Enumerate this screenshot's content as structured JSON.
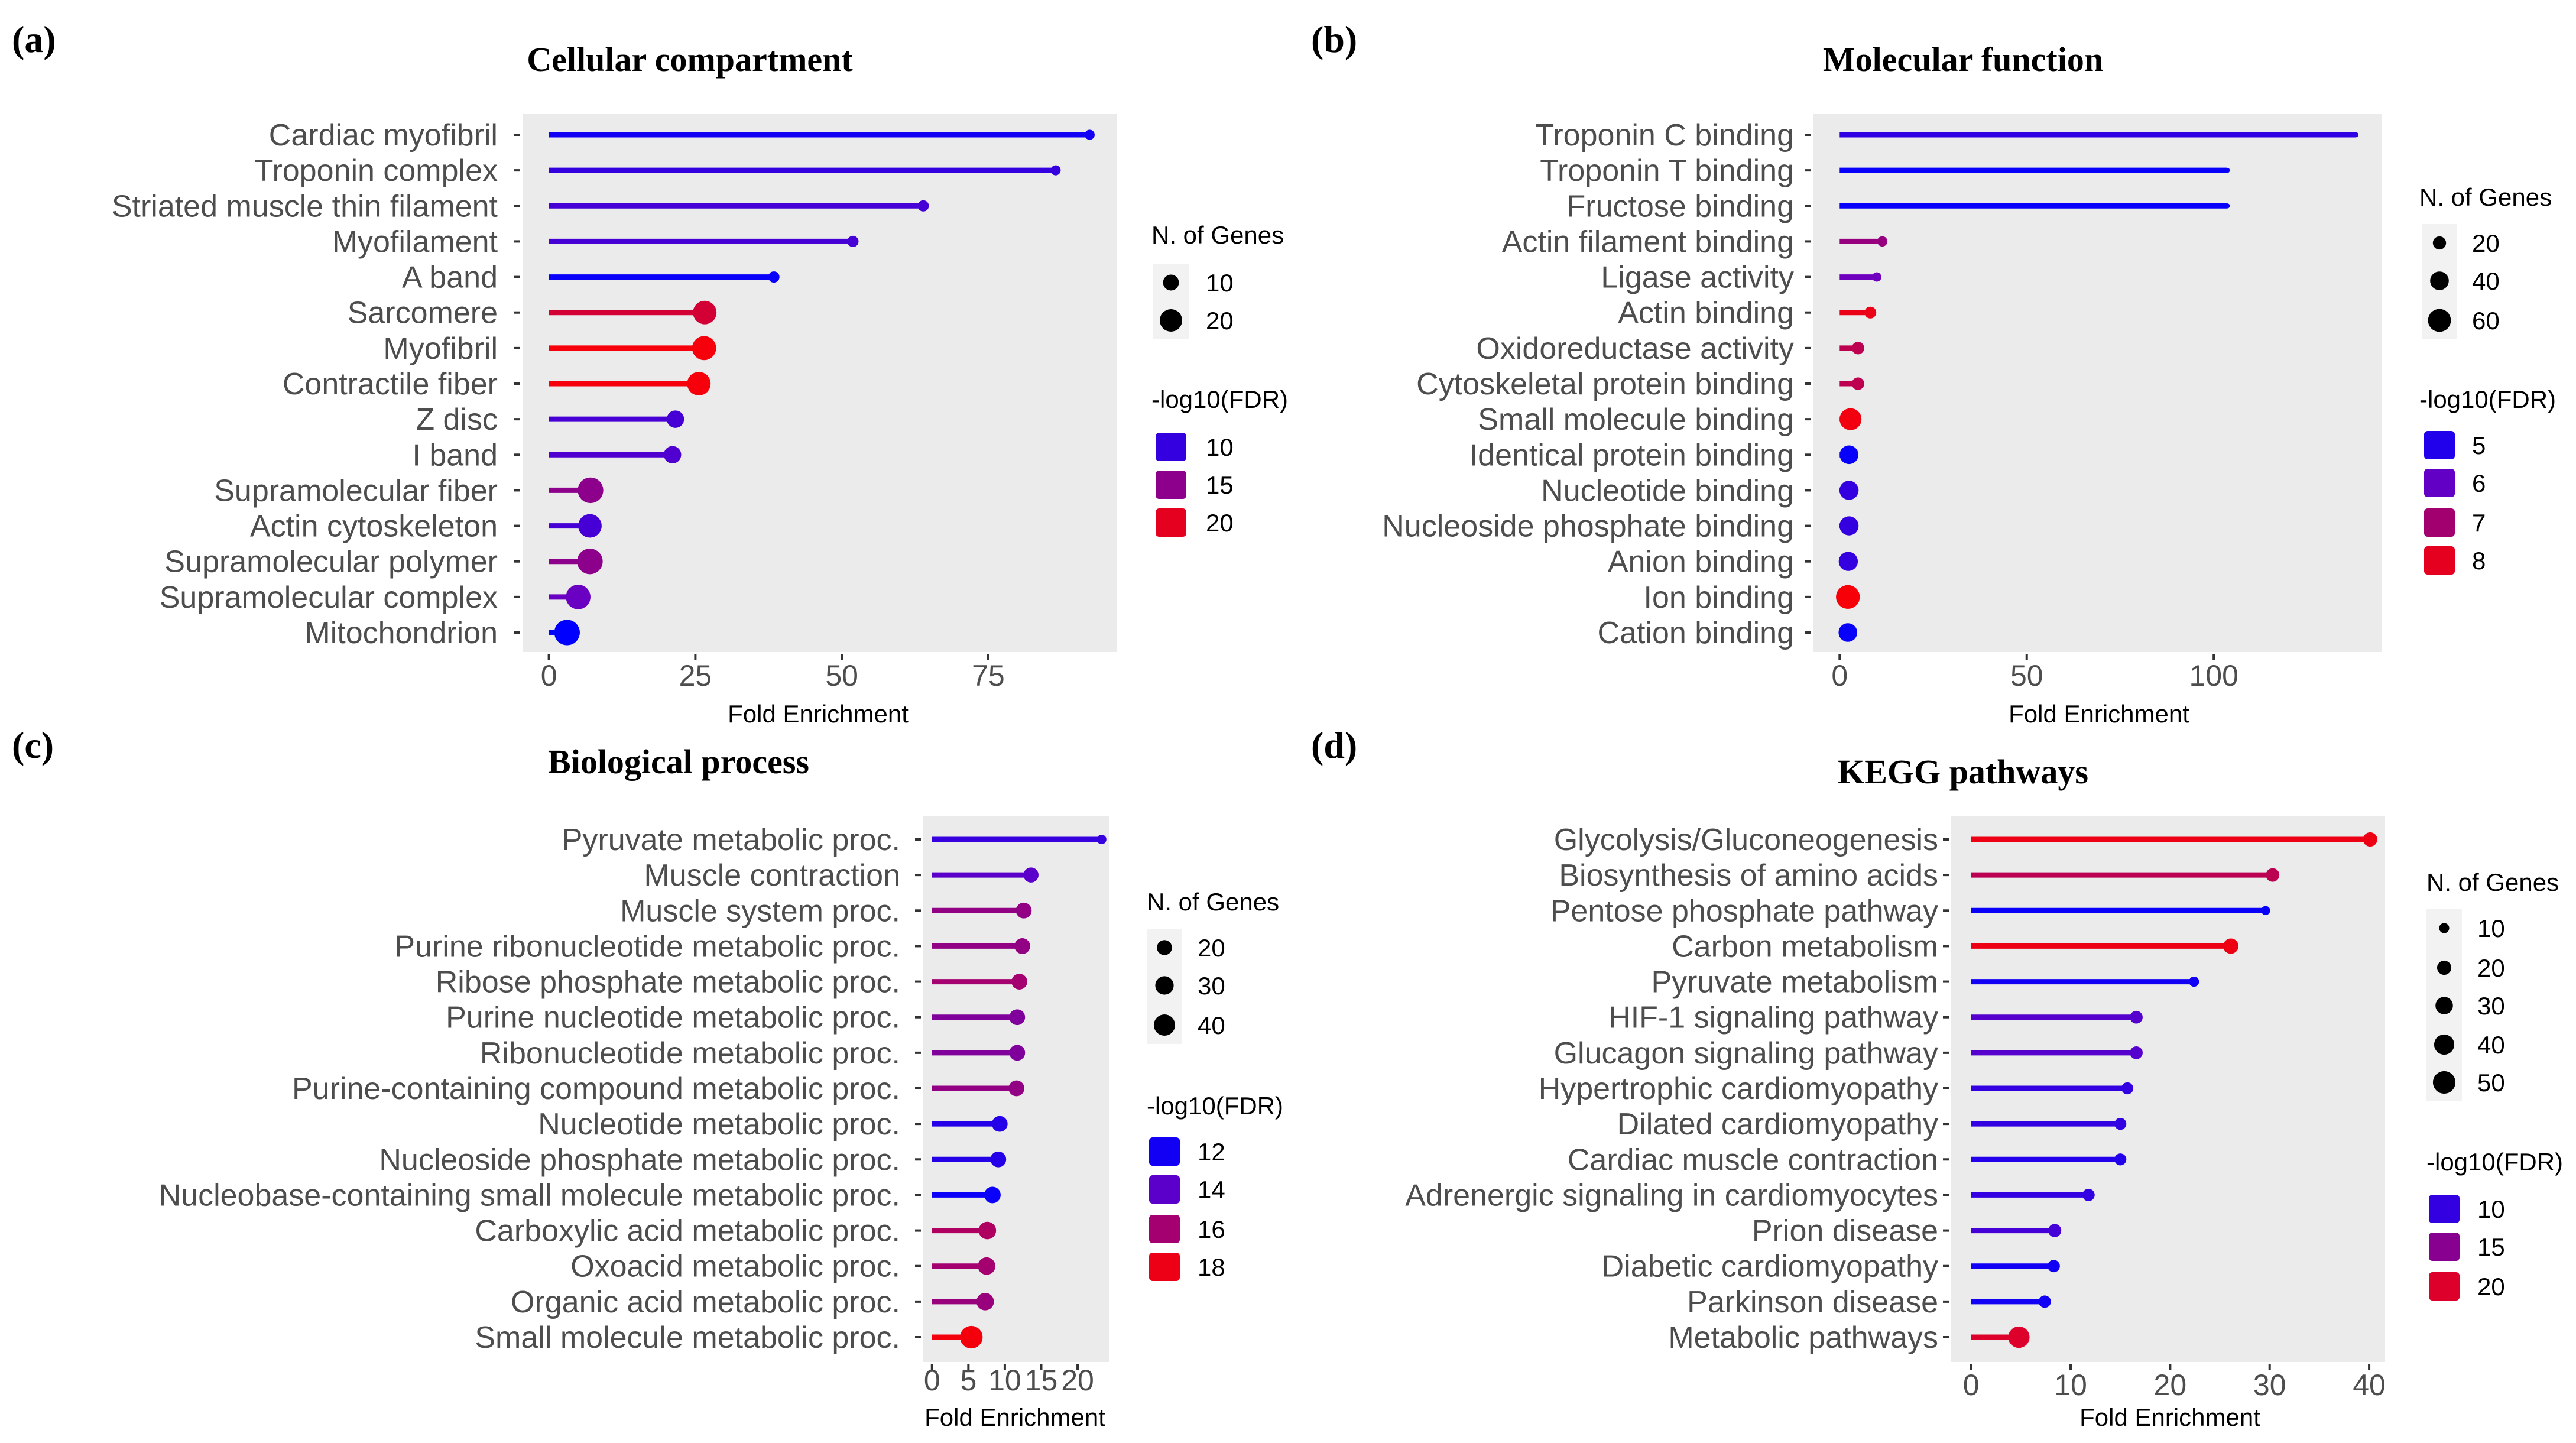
{
  "chart_data": [
    {
      "type": "lollipop",
      "panel_label": "(a)",
      "title": "Cellular compartment",
      "xlabel": "Fold Enrichment",
      "xticks": [
        0,
        25,
        50,
        75
      ],
      "xlim": [
        -4.5,
        97
      ],
      "categories": [
        "Cardiac myofibril",
        "Troponin complex",
        "Striated muscle thin filament",
        "Myofilament",
        "A band",
        "Sarcomere",
        "Myofibril",
        "Contractile fiber",
        "Z disc",
        "I band",
        "Supramolecular fiber",
        "Actin cytoskeleton",
        "Supramolecular polymer",
        "Supramolecular complex",
        "Mitochondrion"
      ],
      "fold_enrichment": [
        92.3,
        86.5,
        63.9,
        51.9,
        38.4,
        26.6,
        26.5,
        25.6,
        21.6,
        21.1,
        7.1,
        7.0,
        7.0,
        5.0,
        3.1
      ],
      "n_genes": [
        4,
        4,
        5,
        5,
        5,
        22,
        23,
        22,
        12,
        12,
        26,
        22,
        26,
        24,
        26
      ],
      "neg_log10_fdr": [
        8,
        10,
        11,
        11,
        7.5,
        19,
        21,
        21,
        11,
        11.5,
        15,
        11,
        15,
        13,
        7
      ],
      "color_range": [
        7,
        21.5
      ],
      "size_legend": {
        "title": "N. of Genes",
        "values": [
          10,
          20
        ]
      },
      "color_legend": {
        "title": "-log10(FDR)",
        "values": [
          10,
          15,
          20
        ]
      }
    },
    {
      "type": "lollipop",
      "panel_label": "(b)",
      "title": "Molecular function",
      "xlabel": "Fold Enrichment",
      "xticks": [
        0,
        50,
        100
      ],
      "xlim": [
        -7,
        145
      ],
      "categories": [
        "Troponin C binding",
        "Troponin T binding",
        "Fructose binding",
        "Actin filament binding",
        "Ligase activity",
        "Actin binding",
        "Oxidoreductase activity",
        "Cytoskeletal protein binding",
        "Small molecule binding",
        "Identical protein binding",
        "Nucleotide binding",
        "Nucleoside phosphate binding",
        "Anion binding",
        "Ion binding",
        "Cation binding"
      ],
      "fold_enrichment": [
        138,
        103.6,
        103.6,
        11.4,
        9.9,
        8.2,
        4.9,
        4.9,
        2.9,
        2.5,
        2.5,
        2.5,
        2.3,
        2.2,
        2.2
      ],
      "n_genes": [
        3,
        3,
        3,
        12,
        10,
        16,
        18,
        18,
        55,
        40,
        42,
        42,
        42,
        65,
        40
      ],
      "neg_log10_fdr": [
        5.2,
        4.6,
        4.6,
        6.8,
        6.2,
        8.1,
        7.4,
        7.4,
        8.2,
        4.6,
        5.3,
        5.3,
        5.3,
        8.3,
        4.6
      ],
      "color_range": [
        4.5,
        8.4
      ],
      "size_legend": {
        "title": "N. of Genes",
        "values": [
          20,
          40,
          60
        ]
      },
      "color_legend": {
        "title": "-log10(FDR)",
        "values": [
          5,
          6,
          7,
          8
        ]
      }
    },
    {
      "type": "lollipop",
      "panel_label": "(c)",
      "title": "Biological process",
      "xlabel": "Fold Enrichment",
      "xticks": [
        0,
        5,
        10,
        15,
        20
      ],
      "xlim": [
        -1.2,
        24.3
      ],
      "categories": [
        "Pyruvate metabolic proc.",
        "Muscle contraction",
        "Muscle system proc.",
        "Purine ribonucleotide metabolic proc.",
        "Ribose phosphate metabolic proc.",
        "Purine nucleotide metabolic proc.",
        "Ribonucleotide metabolic proc.",
        "Purine-containing compound metabolic proc.",
        "Nucleotide metabolic proc.",
        "Nucleoside phosphate metabolic proc.",
        "Nucleobase-containing small molecule metabolic proc.",
        "Carboxylic acid metabolic proc.",
        "Oxoacid metabolic proc.",
        "Organic acid metabolic proc.",
        "Small molecule metabolic proc."
      ],
      "fold_enrichment": [
        23.3,
        13.6,
        12.6,
        12.4,
        12.0,
        11.7,
        11.7,
        11.6,
        9.3,
        9.1,
        8.3,
        7.6,
        7.5,
        7.3,
        5.4
      ],
      "n_genes": [
        8,
        20,
        22,
        22,
        22,
        22,
        22,
        22,
        22,
        22,
        24,
        27,
        27,
        27,
        45
      ],
      "neg_log10_fdr": [
        13,
        14,
        15.5,
        15.5,
        16,
        15,
        15,
        15.5,
        12.5,
        12.5,
        11.8,
        16.3,
        16,
        15.7,
        18.2
      ],
      "color_range": [
        11.5,
        18.5
      ],
      "size_legend": {
        "title": "N. of Genes",
        "values": [
          20,
          30,
          40
        ]
      },
      "color_legend": {
        "title": "-log10(FDR)",
        "values": [
          12,
          14,
          16,
          18
        ]
      }
    },
    {
      "type": "lollipop",
      "panel_label": "(d)",
      "title": "KEGG pathways",
      "xlabel": "Fold Enrichment",
      "xticks": [
        0,
        10,
        20,
        30,
        40
      ],
      "xlim": [
        -2,
        41.6
      ],
      "categories": [
        "Glycolysis/Gluconeogenesis",
        "Biosynthesis of amino acids",
        "Pentose phosphate pathway",
        "Carbon metabolism",
        "Pyruvate metabolism",
        "HIF-1 signaling pathway",
        "Glucagon signaling pathway",
        "Hypertrophic cardiomyopathy",
        "Dilated cardiomyopathy",
        "Cardiac muscle contraction",
        "Adrenergic signaling in cardiomyocytes",
        "Prion disease",
        "Diabetic cardiomyopathy",
        "Parkinson disease",
        "Metabolic pathways"
      ],
      "fold_enrichment": [
        40.1,
        30.3,
        29.6,
        26.1,
        22.4,
        16.6,
        16.6,
        15.7,
        15.0,
        15.0,
        11.8,
        8.4,
        8.3,
        7.4,
        4.8
      ],
      "n_genes": [
        20,
        18,
        8,
        23,
        10,
        16,
        16,
        14,
        14,
        14,
        15,
        17,
        15,
        15,
        45
      ],
      "neg_log10_fdr": [
        21,
        18,
        7.5,
        21,
        8,
        12,
        12,
        10,
        10,
        9,
        10,
        11,
        8,
        8,
        20
      ],
      "color_range": [
        7,
        22
      ],
      "size_legend": {
        "title": "N. of Genes",
        "values": [
          10,
          20,
          30,
          40,
          50
        ]
      },
      "color_legend": {
        "title": "-log10(FDR)",
        "values": [
          10,
          15,
          20
        ]
      }
    }
  ]
}
